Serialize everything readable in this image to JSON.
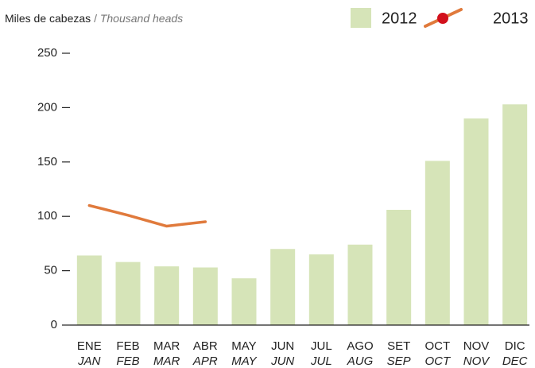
{
  "chart_data": {
    "type": "bar",
    "y_label": "Miles de cabezas",
    "y_label_separator": "/",
    "y_label_en": "Thousand heads",
    "categories": [
      "ENE",
      "FEB",
      "MAR",
      "ABR",
      "MAY",
      "JUN",
      "JUL",
      "AGO",
      "SET",
      "OCT",
      "NOV",
      "DIC"
    ],
    "categories_en": [
      "JAN",
      "FEB",
      "MAR",
      "APR",
      "MAY",
      "JUN",
      "JUL",
      "AUG",
      "SEP",
      "OCT",
      "NOV",
      "DEC"
    ],
    "series": [
      {
        "name": "2012",
        "type": "bar",
        "color": "#d6e4b8",
        "values": [
          64,
          58,
          54,
          53,
          43,
          70,
          65,
          74,
          106,
          151,
          190,
          203
        ]
      },
      {
        "name": "2013",
        "type": "line",
        "color": "#e07a3c",
        "marker_color": "#d2101c",
        "values": [
          110,
          101,
          91,
          95,
          null,
          null,
          null,
          null,
          null,
          null,
          null,
          null
        ]
      }
    ],
    "ylim": [
      0,
      250
    ],
    "yticks": [
      0,
      50,
      100,
      150,
      200,
      250
    ],
    "legend": "top-right"
  }
}
